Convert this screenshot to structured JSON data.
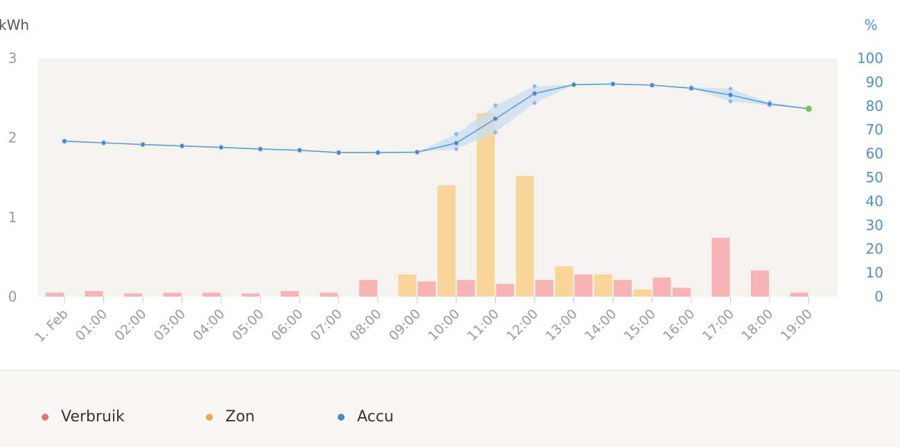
{
  "colors": {
    "verbruik": "#f8b4b4",
    "zon": "#f9d49b",
    "accu_line": "#5b9bd5",
    "accu_band": "#c8ddf2",
    "last_point": "#7cc35a",
    "plot_bg": "#f4f3f0",
    "left_axis_text": "#9a9a9a",
    "right_axis_text": "#4a90c8",
    "legend_verbruik": "#e8707a",
    "legend_zon": "#f0a84a",
    "legend_accu": "#4a8ac8"
  },
  "chart_data": {
    "type": "bar",
    "categories": [
      "1. Feb",
      "01:00",
      "02:00",
      "03:00",
      "04:00",
      "05:00",
      "06:00",
      "07:00",
      "08:00",
      "09:00",
      "10:00",
      "11:00",
      "12:00",
      "13:00",
      "14:00",
      "15:00",
      "16:00",
      "17:00",
      "18:00",
      "19:00"
    ],
    "left_axis": {
      "unit": "kWh",
      "ylim": [
        0,
        3
      ],
      "ticks": [
        "0",
        "1",
        "2",
        "3"
      ]
    },
    "right_axis": {
      "unit": "%",
      "ylim": [
        0,
        100
      ],
      "ticks": [
        "0",
        "10",
        "20",
        "30",
        "40",
        "50",
        "60",
        "70",
        "80",
        "90",
        "100"
      ]
    },
    "grid": false,
    "series": [
      {
        "name": "Verbruik",
        "type": "bar",
        "axis": "left",
        "values": [
          0.05,
          0.07,
          0.04,
          0.05,
          0.05,
          0.04,
          0.07,
          0.05,
          0.21,
          0.19,
          0.21,
          0.16,
          0.21,
          0.28,
          0.21,
          0.24,
          0.11,
          0.74,
          0.33,
          0.05
        ]
      },
      {
        "name": "Zon",
        "type": "bar",
        "axis": "left",
        "values": [
          0,
          0,
          0,
          0,
          0,
          0,
          0,
          0,
          0,
          0.28,
          1.4,
          2.31,
          1.52,
          0.38,
          0.28,
          0.09,
          0,
          0,
          0,
          0
        ]
      },
      {
        "name": "Accu",
        "type": "line",
        "axis": "right",
        "values": [
          65.2,
          64.5,
          63.8,
          63.2,
          62.6,
          61.9,
          61.4,
          60.4,
          60.4,
          60.6,
          64.4,
          74.6,
          85.2,
          88.9,
          89.2,
          88.7,
          87.4,
          84.6,
          80.8,
          78.8
        ],
        "band_low": [
          65.2,
          64.5,
          63.8,
          63.2,
          62.6,
          61.9,
          61.4,
          60.4,
          60.4,
          60.6,
          61.9,
          68.9,
          81.2,
          88.9,
          89.2,
          88.7,
          87.4,
          81.9,
          80.2,
          78.8
        ],
        "band_high": [
          65.2,
          64.5,
          63.8,
          63.2,
          62.6,
          61.9,
          61.4,
          60.4,
          60.4,
          60.6,
          68.2,
          80.2,
          88.2,
          88.9,
          89.2,
          88.7,
          87.9,
          87.2,
          81.4,
          78.8
        ]
      }
    ]
  },
  "legend": {
    "items": [
      {
        "label": "Verbruik"
      },
      {
        "label": "Zon"
      },
      {
        "label": "Accu"
      }
    ]
  }
}
